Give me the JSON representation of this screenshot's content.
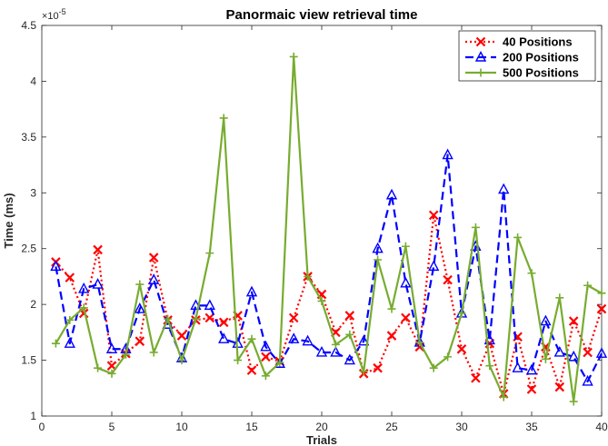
{
  "chart_data": {
    "type": "line",
    "title": "Panormaic view retrieval time",
    "xlabel": "Trials",
    "ylabel": "Time (ms)",
    "y_exponent_label": "×10",
    "y_exponent_power": "-5",
    "xlim": [
      0,
      40
    ],
    "ylim": [
      1,
      4.5
    ],
    "xticks": [
      0,
      5,
      10,
      15,
      20,
      25,
      30,
      35,
      40
    ],
    "yticks": [
      1,
      1.5,
      2,
      2.5,
      3,
      3.5,
      4,
      4.5
    ],
    "grid": false,
    "legend_position": "top-right",
    "x": [
      1,
      2,
      3,
      4,
      5,
      6,
      7,
      8,
      9,
      10,
      11,
      12,
      13,
      14,
      15,
      16,
      17,
      18,
      19,
      20,
      21,
      22,
      23,
      24,
      25,
      26,
      27,
      28,
      29,
      30,
      31,
      32,
      33,
      34,
      35,
      36,
      37,
      38,
      39,
      40
    ],
    "series": [
      {
        "name": "40 Positions",
        "color": "#ff0000",
        "dash": "dotted",
        "marker": "x",
        "values": [
          2.38,
          2.24,
          1.92,
          2.49,
          1.45,
          1.56,
          1.67,
          2.42,
          1.86,
          1.72,
          1.86,
          1.88,
          1.84,
          1.9,
          1.41,
          1.53,
          1.49,
          1.88,
          2.25,
          2.09,
          1.75,
          1.9,
          1.38,
          1.43,
          1.72,
          1.88,
          1.62,
          2.8,
          2.22,
          1.6,
          1.34,
          1.65,
          1.2,
          1.71,
          1.24,
          1.62,
          1.26,
          1.85,
          1.57,
          1.96
        ]
      },
      {
        "name": "200 Positions",
        "color": "#0000ff",
        "dash": "dashed",
        "marker": "triangle",
        "values": [
          2.34,
          1.65,
          2.14,
          2.18,
          1.6,
          1.6,
          1.96,
          2.22,
          1.82,
          1.52,
          1.99,
          1.99,
          1.69,
          1.65,
          2.11,
          1.62,
          1.47,
          1.69,
          1.67,
          1.57,
          1.57,
          1.5,
          1.67,
          2.5,
          2.98,
          2.19,
          1.66,
          2.34,
          3.34,
          1.92,
          2.52,
          1.68,
          3.03,
          1.43,
          1.41,
          1.85,
          1.57,
          1.53,
          1.31,
          1.56
        ]
      },
      {
        "name": "500 Positions",
        "color": "#77ac30",
        "dash": "solid",
        "marker": "plus",
        "values": [
          1.65,
          1.86,
          1.97,
          1.43,
          1.38,
          1.55,
          2.18,
          1.57,
          1.87,
          1.5,
          1.87,
          2.46,
          3.67,
          1.5,
          1.69,
          1.36,
          1.48,
          4.22,
          2.25,
          2.03,
          1.64,
          1.73,
          1.4,
          2.4,
          1.96,
          2.52,
          1.66,
          1.43,
          1.53,
          1.92,
          2.69,
          1.45,
          1.17,
          2.6,
          2.28,
          1.51,
          2.06,
          1.13,
          2.17,
          2.1
        ]
      }
    ]
  }
}
